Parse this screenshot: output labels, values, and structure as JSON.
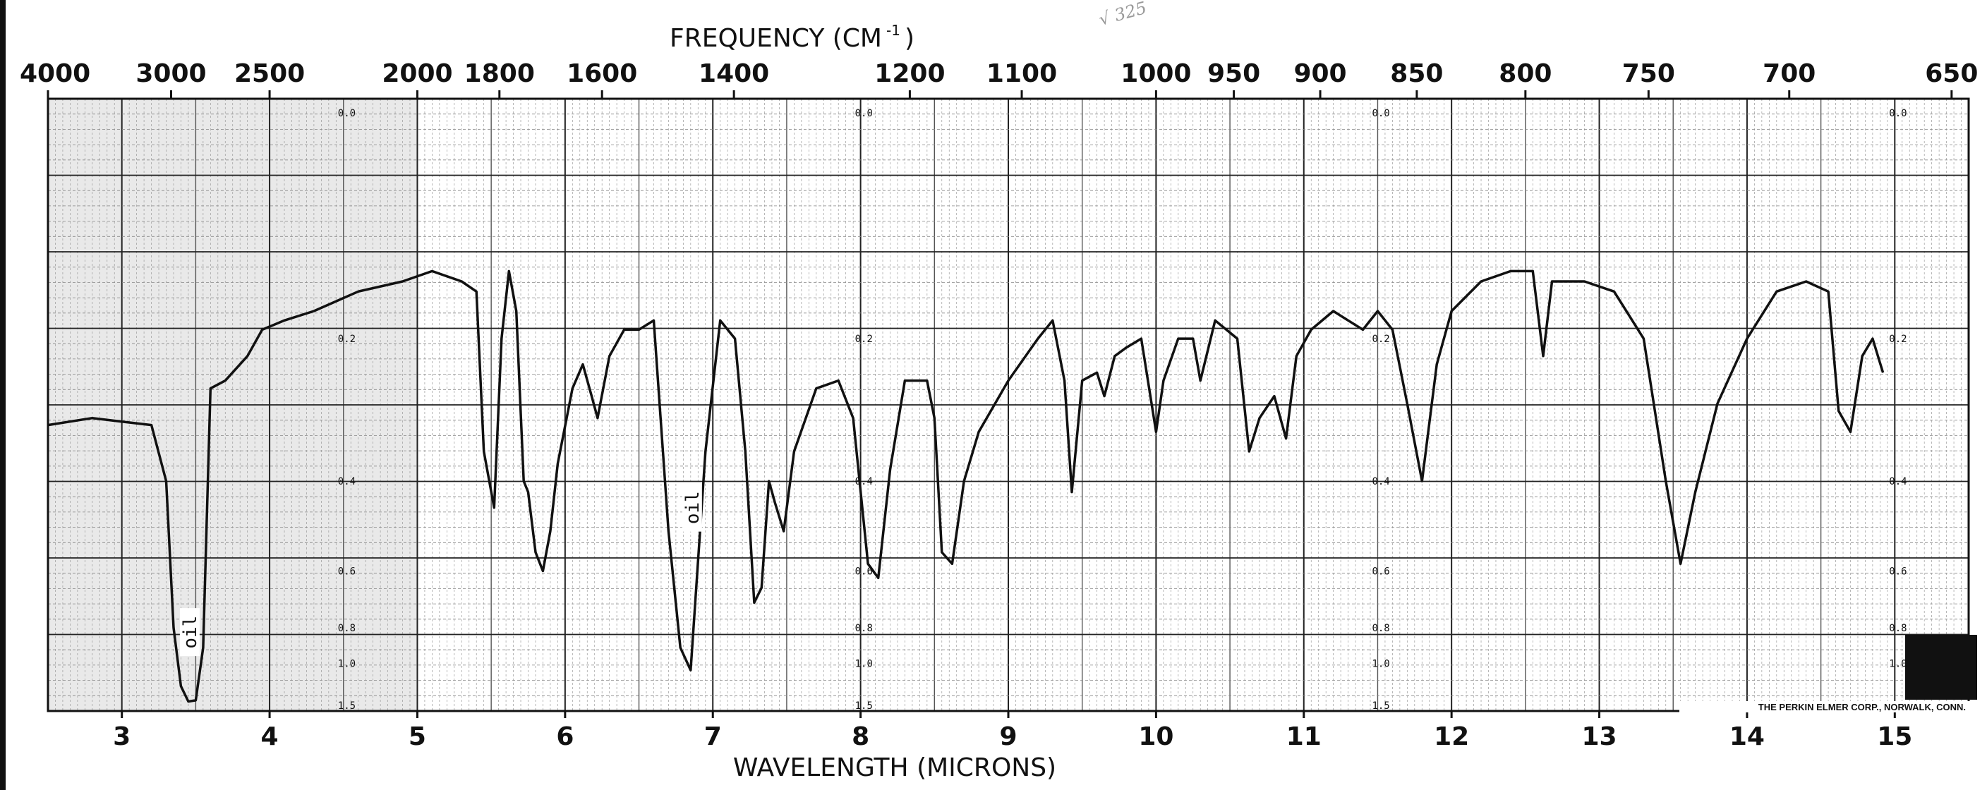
{
  "chart_data": {
    "type": "line",
    "title": "",
    "xlabel": "WAVELENGTH (MICRONS)",
    "x2label_prefix": "FREQUENCY (CM",
    "x2label_sup": "-1",
    "x2label_suffix": ")",
    "ylabel": "",
    "xlim": [
      2.5,
      15.5
    ],
    "ylim": [
      0,
      1.5
    ],
    "y_scale": "absorbance",
    "grid": true,
    "wavelength_ticks": [
      "3",
      "4",
      "5",
      "6",
      "7",
      "8",
      "9",
      "10",
      "11",
      "12",
      "13",
      "14",
      "15"
    ],
    "frequency_ticks": [
      "4000",
      "3000",
      "2500",
      "2000",
      "1800",
      "1600",
      "1400",
      "1200",
      "1100",
      "1000",
      "950",
      "900",
      "850",
      "800",
      "750",
      "700",
      "650"
    ],
    "absorbance_ticks": [
      "0.0",
      "0.2",
      "0.4",
      "0.6",
      "0.8",
      "1.0",
      "1.5"
    ],
    "annotations": [
      {
        "text": "oil",
        "x": 3.45,
        "y": 0.82
      },
      {
        "text": "oil",
        "x": 6.85,
        "y": 0.45
      }
    ],
    "manufacturer_note": "THE PERKIN ELMER CORP., NORWALK, CONN.",
    "handwritten_note": "√ 325",
    "series": [
      {
        "name": "",
        "color": "#111111",
        "x": [
          2.5,
          2.8,
          3.0,
          3.2,
          3.3,
          3.35,
          3.4,
          3.45,
          3.5,
          3.55,
          3.6,
          3.7,
          3.85,
          3.95,
          4.1,
          4.3,
          4.6,
          4.9,
          5.1,
          5.3,
          5.4,
          5.45,
          5.52,
          5.57,
          5.62,
          5.67,
          5.72,
          5.75,
          5.8,
          5.85,
          5.9,
          5.95,
          6.05,
          6.12,
          6.18,
          6.22,
          6.3,
          6.4,
          6.5,
          6.6,
          6.7,
          6.78,
          6.85,
          6.95,
          7.05,
          7.15,
          7.22,
          7.28,
          7.33,
          7.38,
          7.42,
          7.48,
          7.55,
          7.7,
          7.85,
          7.95,
          8.05,
          8.12,
          8.2,
          8.3,
          8.45,
          8.5,
          8.55,
          8.62,
          8.7,
          8.8,
          9.0,
          9.2,
          9.3,
          9.38,
          9.43,
          9.5,
          9.6,
          9.65,
          9.72,
          9.8,
          9.9,
          10.0,
          10.05,
          10.15,
          10.25,
          10.3,
          10.4,
          10.55,
          10.63,
          10.7,
          10.8,
          10.88,
          10.95,
          11.05,
          11.2,
          11.3,
          11.4,
          11.5,
          11.6,
          11.7,
          11.8,
          11.9,
          12.0,
          12.2,
          12.4,
          12.55,
          12.62,
          12.68,
          12.75,
          12.9,
          13.1,
          13.3,
          13.45,
          13.55,
          13.65,
          13.8,
          14.0,
          14.2,
          14.4,
          14.55,
          14.62,
          14.7,
          14.78,
          14.85,
          14.92
        ],
        "y": [
          0.31,
          0.3,
          0.305,
          0.31,
          0.4,
          0.8,
          1.2,
          1.42,
          1.4,
          0.9,
          0.26,
          0.25,
          0.22,
          0.19,
          0.18,
          0.17,
          0.15,
          0.14,
          0.13,
          0.14,
          0.15,
          0.35,
          0.45,
          0.2,
          0.13,
          0.17,
          0.4,
          0.42,
          0.55,
          0.6,
          0.5,
          0.37,
          0.26,
          0.23,
          0.27,
          0.3,
          0.22,
          0.19,
          0.19,
          0.18,
          0.5,
          0.9,
          1.05,
          0.35,
          0.18,
          0.2,
          0.35,
          0.7,
          0.65,
          0.4,
          0.44,
          0.5,
          0.35,
          0.26,
          0.25,
          0.3,
          0.58,
          0.62,
          0.38,
          0.25,
          0.25,
          0.3,
          0.55,
          0.58,
          0.4,
          0.32,
          0.25,
          0.2,
          0.18,
          0.25,
          0.42,
          0.25,
          0.24,
          0.27,
          0.22,
          0.21,
          0.2,
          0.32,
          0.25,
          0.2,
          0.2,
          0.25,
          0.18,
          0.2,
          0.35,
          0.3,
          0.27,
          0.33,
          0.22,
          0.19,
          0.17,
          0.18,
          0.19,
          0.17,
          0.19,
          0.28,
          0.4,
          0.23,
          0.17,
          0.14,
          0.13,
          0.13,
          0.22,
          0.14,
          0.14,
          0.14,
          0.15,
          0.2,
          0.4,
          0.58,
          0.42,
          0.28,
          0.2,
          0.15,
          0.14,
          0.15,
          0.29,
          0.32,
          0.22,
          0.2,
          0.24
        ]
      }
    ]
  }
}
